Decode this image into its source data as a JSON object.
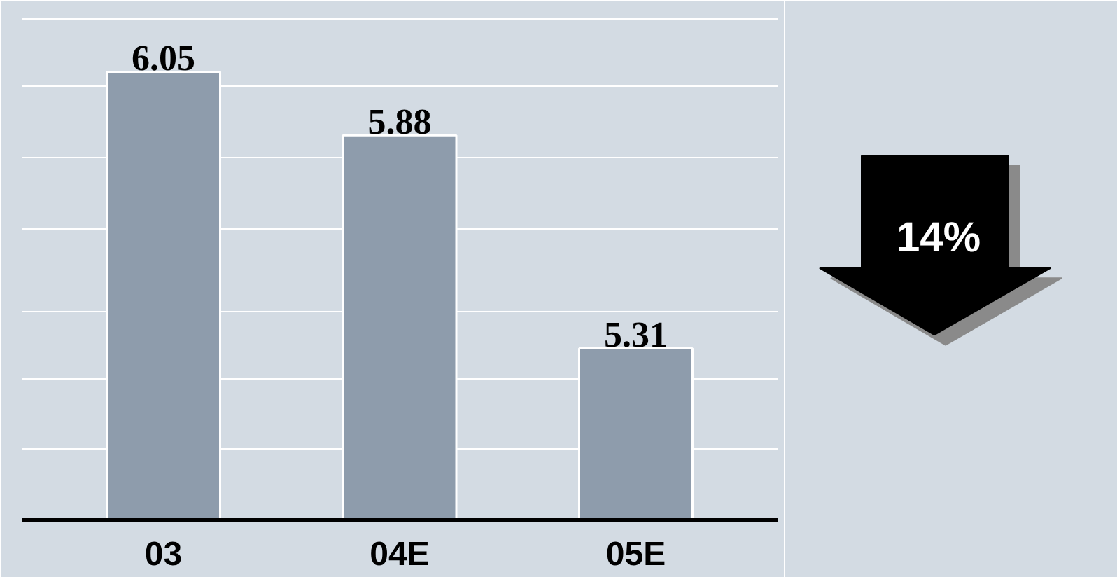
{
  "chart_data": {
    "type": "bar",
    "categories": [
      "03",
      "04E",
      "05E"
    ],
    "values": [
      6.05,
      5.88,
      5.31
    ],
    "color": "#8e9cac",
    "data_labels": true,
    "ylim": [
      4.85,
      6.24
    ],
    "yticks": [
      {
        "value": 5.04,
        "label": null
      },
      {
        "value": 5.23,
        "label": null
      },
      {
        "value": 5.41,
        "label": null
      },
      {
        "value": 5.63,
        "label": null
      },
      {
        "value": 5.82,
        "label": null
      },
      {
        "value": 6.01,
        "label": null
      },
      {
        "value": 6.19,
        "label": null
      }
    ],
    "grid": "y",
    "tick_labels": "x",
    "annotations": [
      "14%"
    ]
  }
}
